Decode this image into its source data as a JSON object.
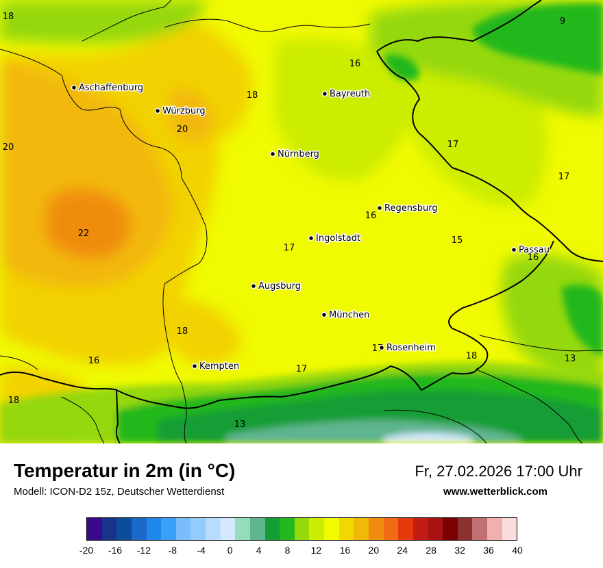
{
  "map": {
    "cities": [
      {
        "name": "Aschaffenburg"
      },
      {
        "name": "Würzburg"
      },
      {
        "name": "Bayreuth"
      },
      {
        "name": "Nürnberg"
      },
      {
        "name": "Regensburg"
      },
      {
        "name": "Ingolstadt"
      },
      {
        "name": "Passau"
      },
      {
        "name": "Augsburg"
      },
      {
        "name": "München"
      },
      {
        "name": "Rosenheim"
      },
      {
        "name": "Kempten"
      }
    ],
    "temperature_values": [
      "18",
      "9",
      "16",
      "18",
      "20",
      "20",
      "17",
      "17",
      "22",
      "16",
      "17",
      "15",
      "16",
      "18",
      "16",
      "17",
      "17",
      "18",
      "13",
      "18",
      "13"
    ]
  },
  "footer": {
    "title": "Temperatur in 2m (in °C)",
    "model": "Modell: ICON-D2 15z, Deutscher Wetterdienst",
    "datetime": "Fr, 27.02.2026 17:00 Uhr",
    "site": "www.wetterblick.com"
  },
  "legend": {
    "colors": [
      "#3a0a8c",
      "#17338a",
      "#0b4d9a",
      "#1a68c8",
      "#1e88ea",
      "#3aa0f7",
      "#79bdfb",
      "#93cbfc",
      "#b7dcfd",
      "#d5e9fe",
      "#95dcbb",
      "#5fb590",
      "#149d34",
      "#22b81e",
      "#95d80c",
      "#ccec04",
      "#f0fa00",
      "#f0d800",
      "#f2b808",
      "#f08c10",
      "#ef6c14",
      "#e63a0e",
      "#c21d14",
      "#a81414",
      "#7c0202",
      "#8c3030",
      "#c07070",
      "#f0b0b0",
      "#fcdcdc"
    ],
    "ticks": [
      "-20",
      "-16",
      "-12",
      "-8",
      "-4",
      "0",
      "4",
      "8",
      "12",
      "16",
      "20",
      "24",
      "28",
      "32",
      "36",
      "40"
    ]
  }
}
